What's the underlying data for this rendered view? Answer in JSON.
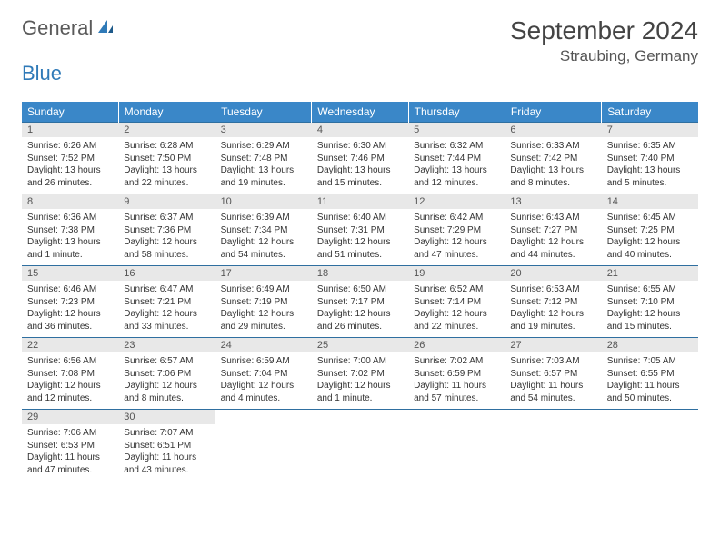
{
  "logo": {
    "word1": "General",
    "word2": "Blue"
  },
  "title": "September 2024",
  "location": "Straubing, Germany",
  "header_bg": "#3a87c8",
  "row_border": "#2f6fa0",
  "daynum_bg": "#e8e8e8",
  "weekdays": [
    "Sunday",
    "Monday",
    "Tuesday",
    "Wednesday",
    "Thursday",
    "Friday",
    "Saturday"
  ],
  "weeks": [
    [
      {
        "n": "1",
        "sr": "6:26 AM",
        "ss": "7:52 PM",
        "dl": "13 hours and 26 minutes."
      },
      {
        "n": "2",
        "sr": "6:28 AM",
        "ss": "7:50 PM",
        "dl": "13 hours and 22 minutes."
      },
      {
        "n": "3",
        "sr": "6:29 AM",
        "ss": "7:48 PM",
        "dl": "13 hours and 19 minutes."
      },
      {
        "n": "4",
        "sr": "6:30 AM",
        "ss": "7:46 PM",
        "dl": "13 hours and 15 minutes."
      },
      {
        "n": "5",
        "sr": "6:32 AM",
        "ss": "7:44 PM",
        "dl": "13 hours and 12 minutes."
      },
      {
        "n": "6",
        "sr": "6:33 AM",
        "ss": "7:42 PM",
        "dl": "13 hours and 8 minutes."
      },
      {
        "n": "7",
        "sr": "6:35 AM",
        "ss": "7:40 PM",
        "dl": "13 hours and 5 minutes."
      }
    ],
    [
      {
        "n": "8",
        "sr": "6:36 AM",
        "ss": "7:38 PM",
        "dl": "13 hours and 1 minute."
      },
      {
        "n": "9",
        "sr": "6:37 AM",
        "ss": "7:36 PM",
        "dl": "12 hours and 58 minutes."
      },
      {
        "n": "10",
        "sr": "6:39 AM",
        "ss": "7:34 PM",
        "dl": "12 hours and 54 minutes."
      },
      {
        "n": "11",
        "sr": "6:40 AM",
        "ss": "7:31 PM",
        "dl": "12 hours and 51 minutes."
      },
      {
        "n": "12",
        "sr": "6:42 AM",
        "ss": "7:29 PM",
        "dl": "12 hours and 47 minutes."
      },
      {
        "n": "13",
        "sr": "6:43 AM",
        "ss": "7:27 PM",
        "dl": "12 hours and 44 minutes."
      },
      {
        "n": "14",
        "sr": "6:45 AM",
        "ss": "7:25 PM",
        "dl": "12 hours and 40 minutes."
      }
    ],
    [
      {
        "n": "15",
        "sr": "6:46 AM",
        "ss": "7:23 PM",
        "dl": "12 hours and 36 minutes."
      },
      {
        "n": "16",
        "sr": "6:47 AM",
        "ss": "7:21 PM",
        "dl": "12 hours and 33 minutes."
      },
      {
        "n": "17",
        "sr": "6:49 AM",
        "ss": "7:19 PM",
        "dl": "12 hours and 29 minutes."
      },
      {
        "n": "18",
        "sr": "6:50 AM",
        "ss": "7:17 PM",
        "dl": "12 hours and 26 minutes."
      },
      {
        "n": "19",
        "sr": "6:52 AM",
        "ss": "7:14 PM",
        "dl": "12 hours and 22 minutes."
      },
      {
        "n": "20",
        "sr": "6:53 AM",
        "ss": "7:12 PM",
        "dl": "12 hours and 19 minutes."
      },
      {
        "n": "21",
        "sr": "6:55 AM",
        "ss": "7:10 PM",
        "dl": "12 hours and 15 minutes."
      }
    ],
    [
      {
        "n": "22",
        "sr": "6:56 AM",
        "ss": "7:08 PM",
        "dl": "12 hours and 12 minutes."
      },
      {
        "n": "23",
        "sr": "6:57 AM",
        "ss": "7:06 PM",
        "dl": "12 hours and 8 minutes."
      },
      {
        "n": "24",
        "sr": "6:59 AM",
        "ss": "7:04 PM",
        "dl": "12 hours and 4 minutes."
      },
      {
        "n": "25",
        "sr": "7:00 AM",
        "ss": "7:02 PM",
        "dl": "12 hours and 1 minute."
      },
      {
        "n": "26",
        "sr": "7:02 AM",
        "ss": "6:59 PM",
        "dl": "11 hours and 57 minutes."
      },
      {
        "n": "27",
        "sr": "7:03 AM",
        "ss": "6:57 PM",
        "dl": "11 hours and 54 minutes."
      },
      {
        "n": "28",
        "sr": "7:05 AM",
        "ss": "6:55 PM",
        "dl": "11 hours and 50 minutes."
      }
    ],
    [
      {
        "n": "29",
        "sr": "7:06 AM",
        "ss": "6:53 PM",
        "dl": "11 hours and 47 minutes."
      },
      {
        "n": "30",
        "sr": "7:07 AM",
        "ss": "6:51 PM",
        "dl": "11 hours and 43 minutes."
      },
      null,
      null,
      null,
      null,
      null
    ]
  ],
  "labels": {
    "sunrise": "Sunrise:",
    "sunset": "Sunset:",
    "daylight": "Daylight:"
  }
}
